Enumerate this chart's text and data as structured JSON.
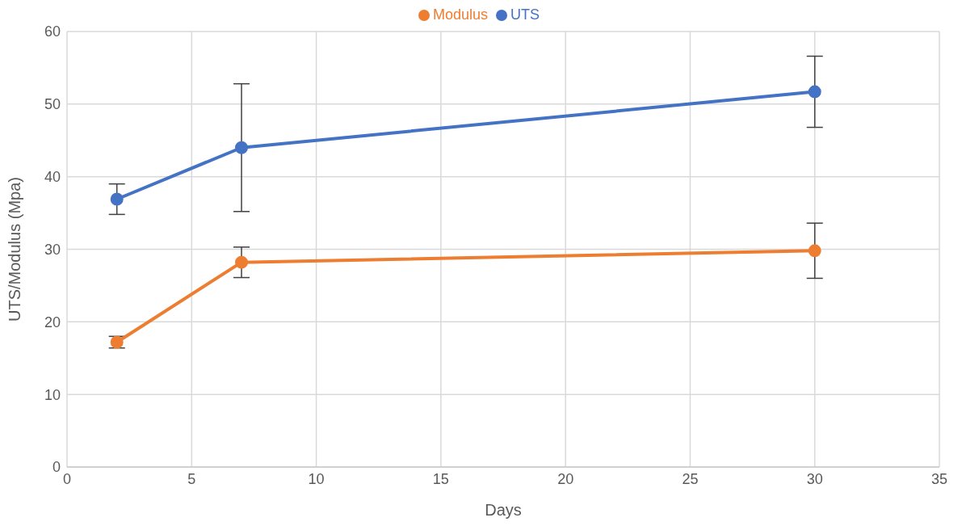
{
  "chart_data": {
    "type": "line",
    "xlabel": "Days",
    "ylabel": "UTS/Modulus (Mpa)",
    "x": [
      2,
      7,
      30
    ],
    "series": [
      {
        "name": "UTS",
        "color": "#4472c4",
        "values": [
          36.9,
          44.0,
          51.7
        ],
        "errors": [
          2.1,
          8.8,
          4.9
        ]
      },
      {
        "name": "Modulus",
        "color": "#ed7d31",
        "values": [
          17.2,
          28.2,
          29.8
        ],
        "errors": [
          0.8,
          2.1,
          3.8
        ]
      }
    ],
    "xlim": [
      0,
      35
    ],
    "xticks": [
      0,
      5,
      10,
      15,
      20,
      25,
      30,
      35
    ],
    "ylim": [
      0,
      60
    ],
    "yticks": [
      0,
      10,
      20,
      30,
      40,
      50,
      60
    ],
    "grid": true,
    "legend": "top",
    "marker": "circle",
    "line_style": "solid"
  }
}
